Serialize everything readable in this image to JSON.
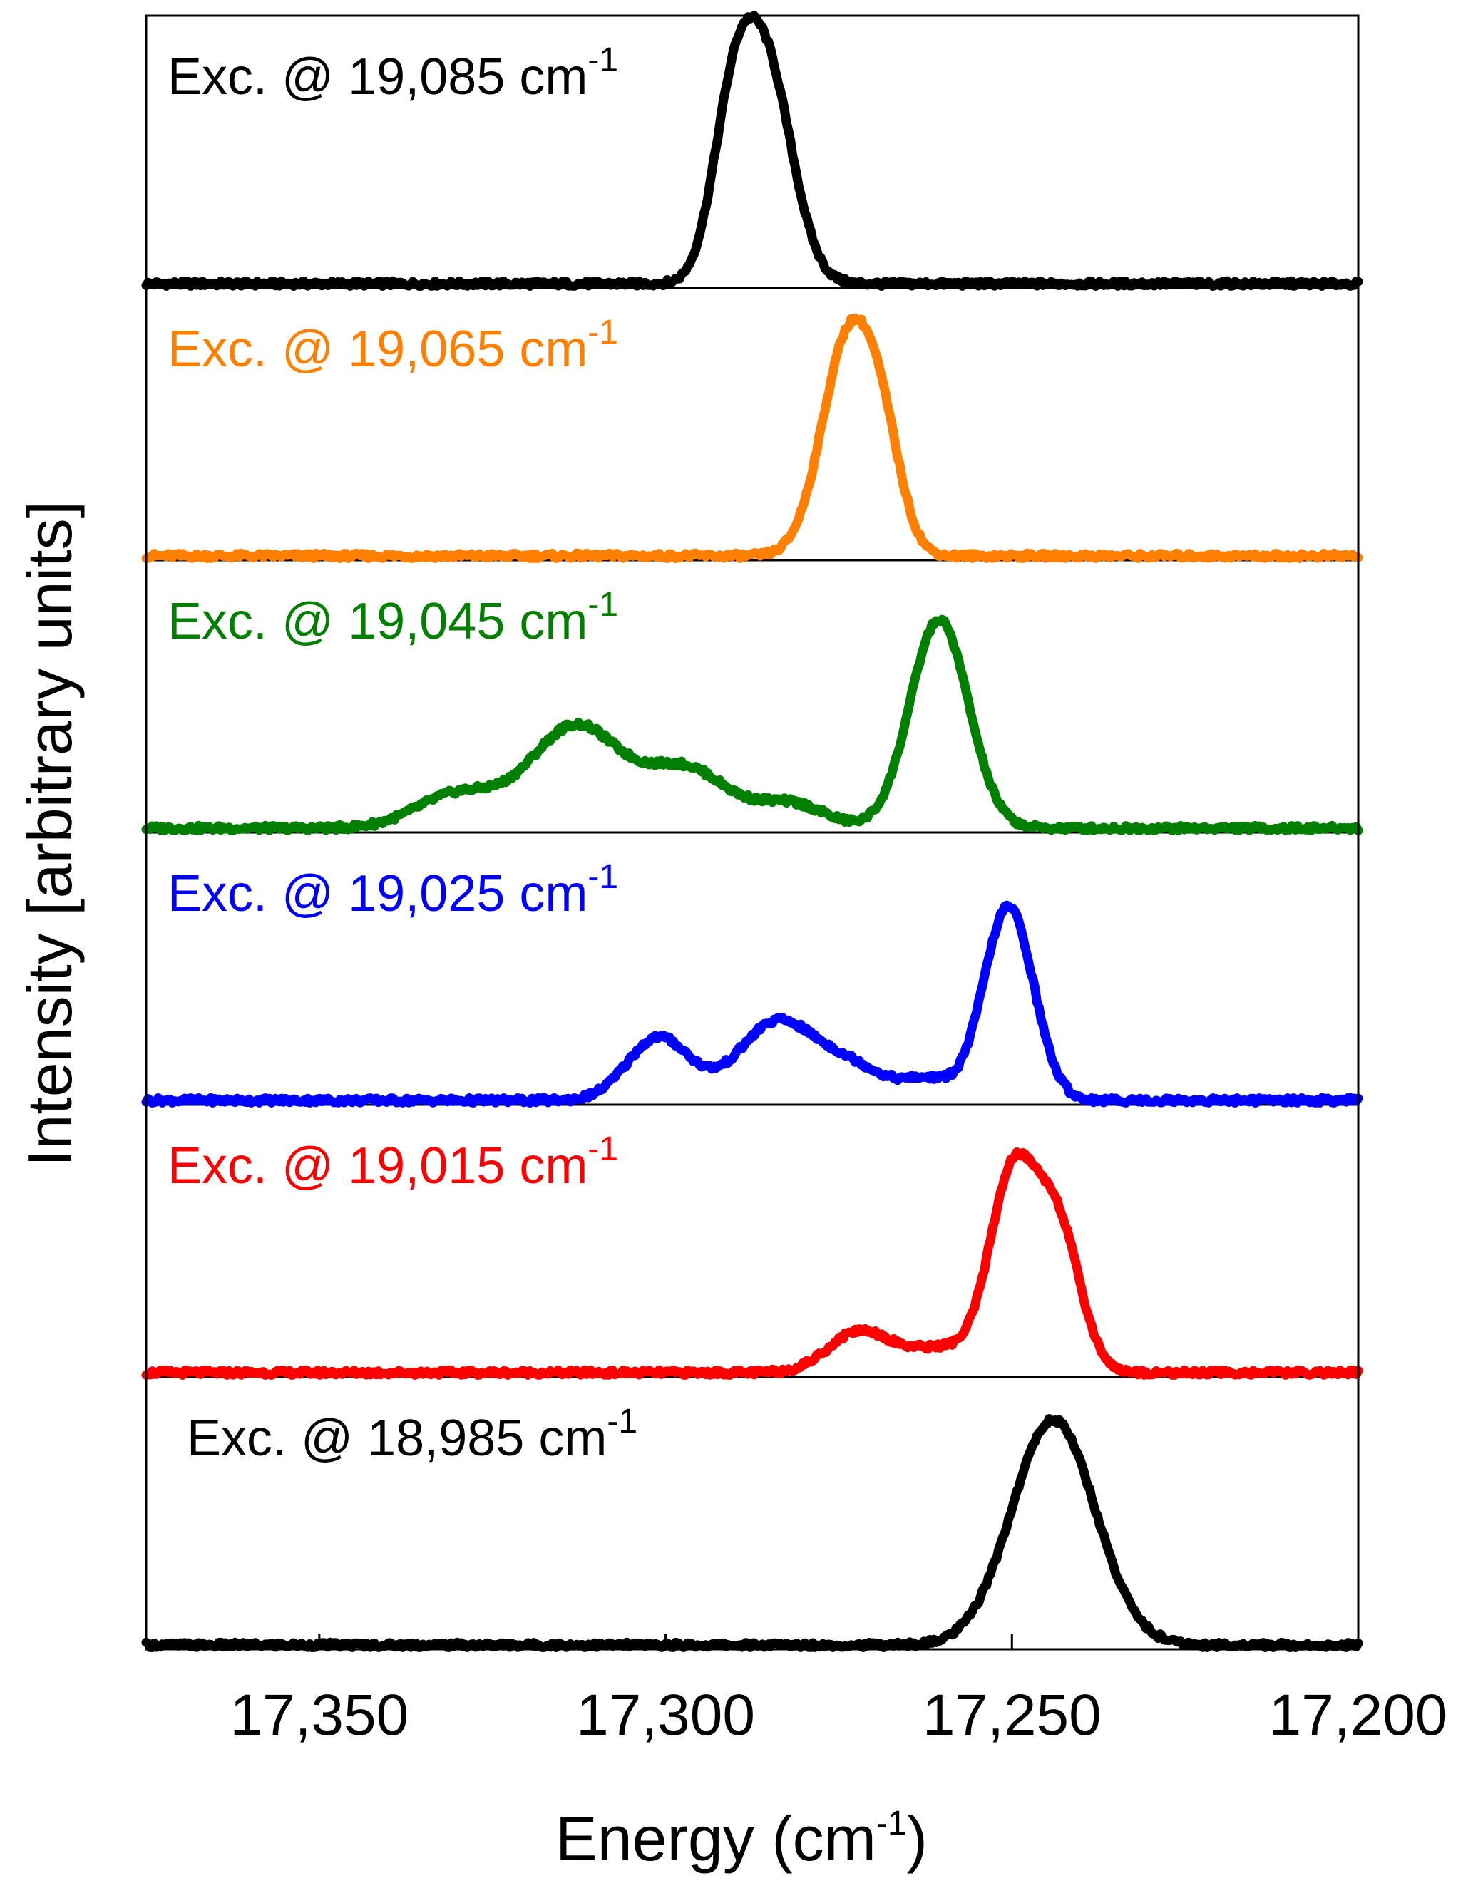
{
  "chart_data": {
    "type": "line",
    "layout": "stacked panels sharing x-axis",
    "xlabel": "Energy (cm",
    "xlabel_sup": "-1",
    "xlabel_close": ")",
    "ylabel": "Intensity  [arbitrary units]",
    "x_direction": "reversed",
    "xlim": [
      17375,
      17200
    ],
    "x_ticks": [
      17350,
      17300,
      17250,
      17200
    ],
    "x_tick_labels": [
      "17,350",
      "17,300",
      "17,250",
      "17,200"
    ],
    "x_minor_ticks": [
      17325,
      17275,
      17225
    ],
    "series": [
      {
        "name": "Exc. @ 19,085 cm",
        "sup": "-1",
        "color": "#000000",
        "peaks": [
          {
            "x": 17285.5,
            "amp": 0.88,
            "width": 3.8
          },
          {
            "x": 17290.5,
            "amp": 0.55,
            "width": 3.0
          }
        ]
      },
      {
        "name": "Exc. @ 19,065 cm",
        "sup": "-1",
        "color": "#ff8000",
        "peaks": [
          {
            "x": 17273.5,
            "amp": 0.9,
            "width": 3.9
          },
          {
            "x": 17268.5,
            "amp": 0.3,
            "width": 2.8
          }
        ]
      },
      {
        "name": "Exc. @ 19,045 cm",
        "sup": "-1",
        "color": "#007f00",
        "peaks": [
          {
            "x": 17260.5,
            "amp": 0.86,
            "width": 4.2
          },
          {
            "x": 17313.0,
            "amp": 0.42,
            "width": 6.5
          },
          {
            "x": 17297.0,
            "amp": 0.24,
            "width": 6.0
          },
          {
            "x": 17282.0,
            "amp": 0.1,
            "width": 5.0
          },
          {
            "x": 17330.0,
            "amp": 0.14,
            "width": 6.0
          }
        ]
      },
      {
        "name": "Exc. @ 19,025 cm",
        "sup": "-1",
        "color": "#0000ff",
        "peaks": [
          {
            "x": 17250.5,
            "amp": 0.8,
            "width": 3.6
          },
          {
            "x": 17301.0,
            "amp": 0.26,
            "width": 4.5
          },
          {
            "x": 17284.0,
            "amp": 0.32,
            "width": 5.5
          },
          {
            "x": 17273.0,
            "amp": 0.13,
            "width": 5.0
          },
          {
            "x": 17262.0,
            "amp": 0.08,
            "width": 3.5
          }
        ]
      },
      {
        "name": "Exc. @ 19,015 cm",
        "sup": "-1",
        "color": "#ff0000",
        "peaks": [
          {
            "x": 17250.0,
            "amp": 0.78,
            "width": 3.3
          },
          {
            "x": 17243.5,
            "amp": 0.6,
            "width": 3.3
          },
          {
            "x": 17272.0,
            "amp": 0.17,
            "width": 4.5
          },
          {
            "x": 17260.0,
            "amp": 0.1,
            "width": 5.0
          }
        ]
      },
      {
        "name": "Exc. @ 18,985 cm",
        "sup": "-1",
        "color": "#000000",
        "peaks": [
          {
            "x": 17244.0,
            "amp": 0.93,
            "width": 6.0
          }
        ]
      }
    ]
  }
}
